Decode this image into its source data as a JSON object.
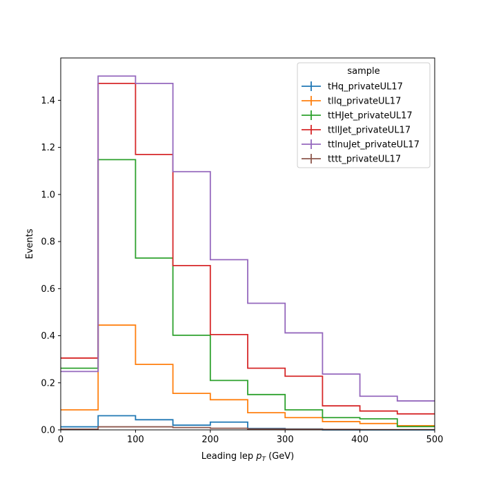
{
  "chart_data": {
    "type": "histogram-step",
    "xlabel": "Leading lep",
    "xlabel_symbol": "p",
    "xlabel_subscript": "T",
    "xlabel_unit": "(GeV)",
    "ylabel": "Events",
    "xlim": [
      0,
      500
    ],
    "ylim": [
      0,
      1.58
    ],
    "xticks": [
      0,
      100,
      200,
      300,
      400,
      500
    ],
    "yticks": [
      0.0,
      0.2,
      0.4,
      0.6,
      0.8,
      1.0,
      1.2,
      1.4
    ],
    "ytick_labels": [
      "0.0",
      "0.2",
      "0.4",
      "0.6",
      "0.8",
      "1.0",
      "1.2",
      "1.4"
    ],
    "grid": false,
    "legend_title": "sample",
    "legend_position": "top-right",
    "bin_edges": [
      0,
      50,
      100,
      150,
      200,
      250,
      300,
      350,
      400,
      450,
      500
    ],
    "series": [
      {
        "name": "tHq_privateUL17",
        "color": "#1f77b4",
        "values": [
          0.013,
          0.06,
          0.043,
          0.02,
          0.033,
          0.006,
          0.004,
          0.0,
          0.0,
          0.0
        ]
      },
      {
        "name": "tllq_privateUL17",
        "color": "#ff7f0e",
        "values": [
          0.085,
          0.445,
          0.278,
          0.155,
          0.128,
          0.073,
          0.052,
          0.035,
          0.027,
          0.018
        ]
      },
      {
        "name": "ttHJet_privateUL17",
        "color": "#2ca02c",
        "values": [
          0.262,
          1.148,
          0.73,
          0.402,
          0.21,
          0.15,
          0.085,
          0.052,
          0.047,
          0.014
        ]
      },
      {
        "name": "ttllJet_privateUL17",
        "color": "#d62728",
        "values": [
          0.305,
          1.472,
          1.17,
          0.698,
          0.405,
          0.262,
          0.228,
          0.102,
          0.08,
          0.068
        ]
      },
      {
        "name": "ttlnuJet_privateUL17",
        "color": "#9467bd",
        "values": [
          0.248,
          1.503,
          1.472,
          1.097,
          0.723,
          0.538,
          0.412,
          0.237,
          0.143,
          0.123
        ]
      },
      {
        "name": "tttt_privateUL17",
        "color": "#8c564b",
        "values": [
          0.003,
          0.013,
          0.013,
          0.01,
          0.007,
          0.004,
          0.003,
          0.002,
          0.001,
          0.001
        ]
      }
    ]
  }
}
